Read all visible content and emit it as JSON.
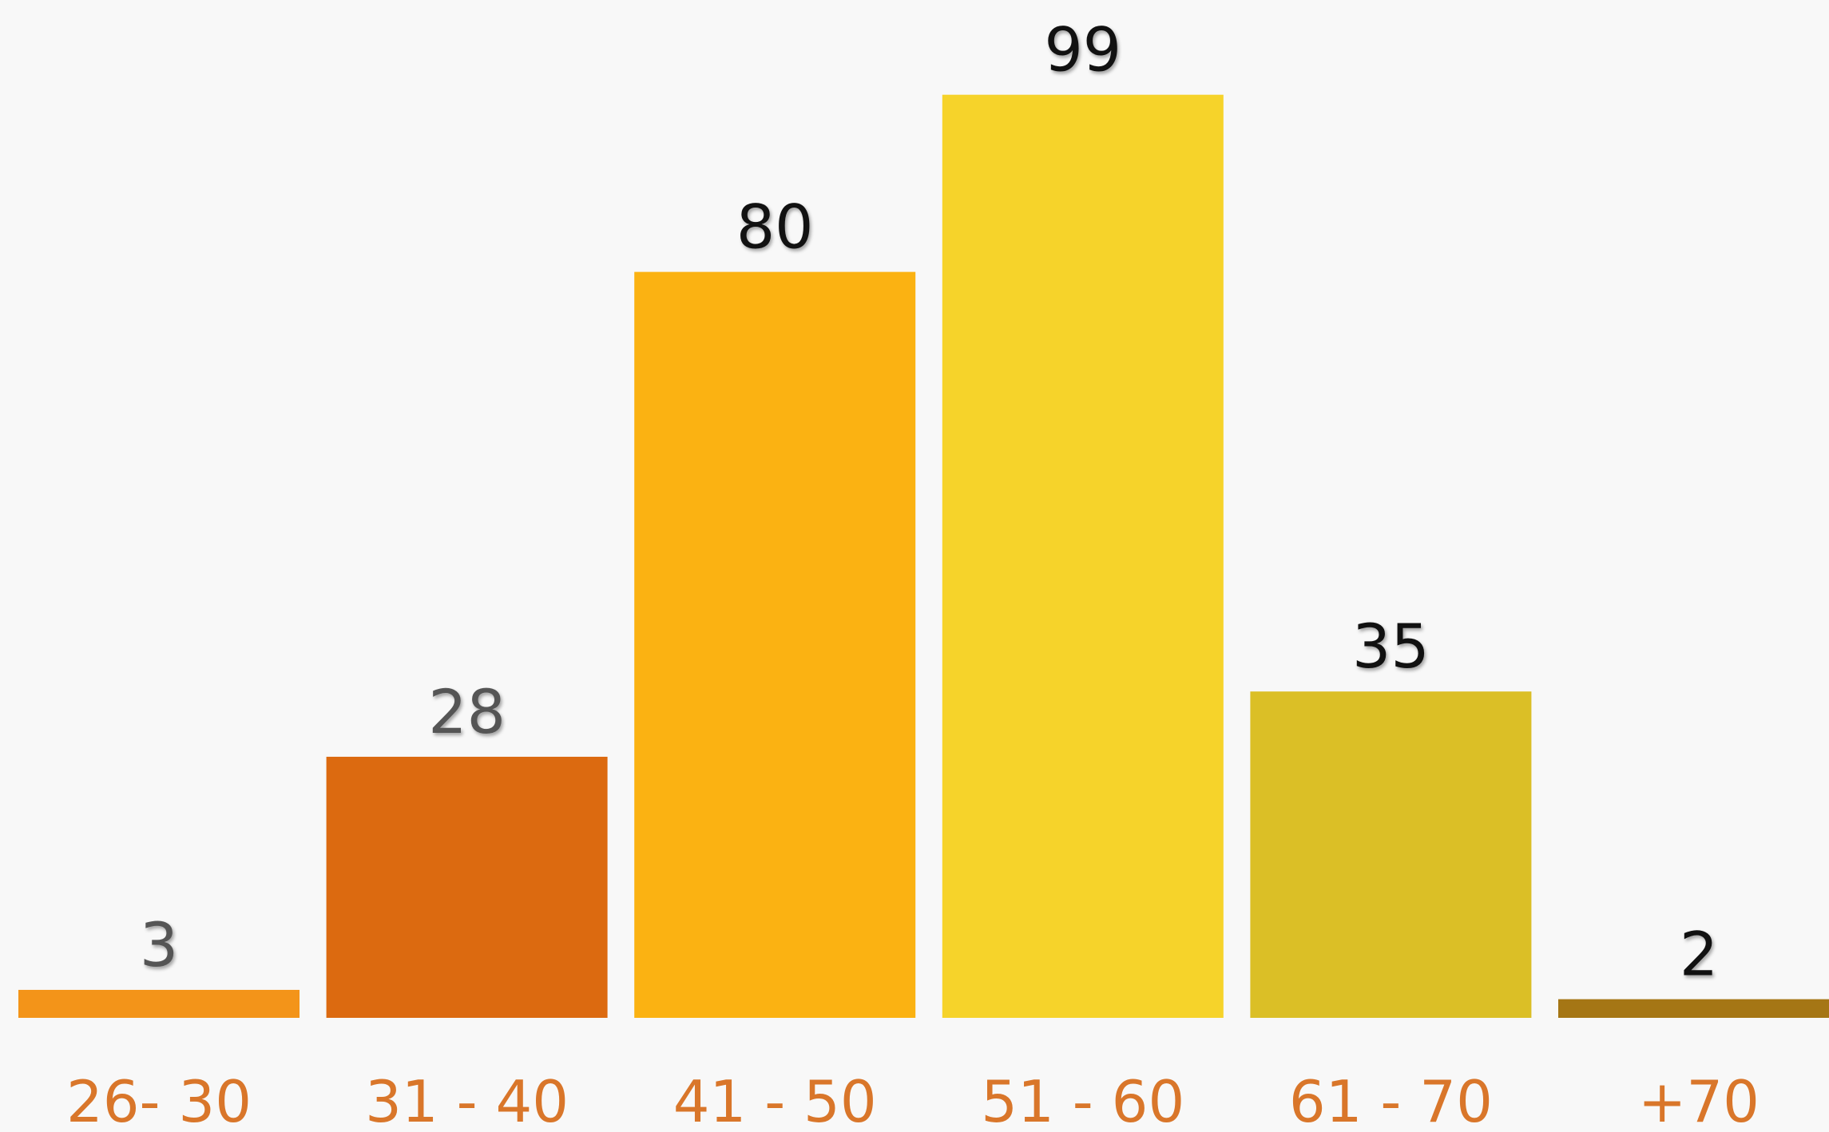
{
  "chart_data": {
    "type": "bar",
    "categories": [
      "26- 30",
      "31 - 40",
      "41 - 50",
      "51 - 60",
      "61 - 70",
      "+70"
    ],
    "values": [
      3,
      28,
      80,
      99,
      35,
      2
    ],
    "colors": [
      "#f39419",
      "#dc6a10",
      "#fbb212",
      "#f6d32a",
      "#dbbf26",
      "#a57615"
    ],
    "label_colors": [
      "#555555",
      "#555555",
      "#111111",
      "#111111",
      "#111111",
      "#111111"
    ],
    "category_color": "#d9762a"
  }
}
